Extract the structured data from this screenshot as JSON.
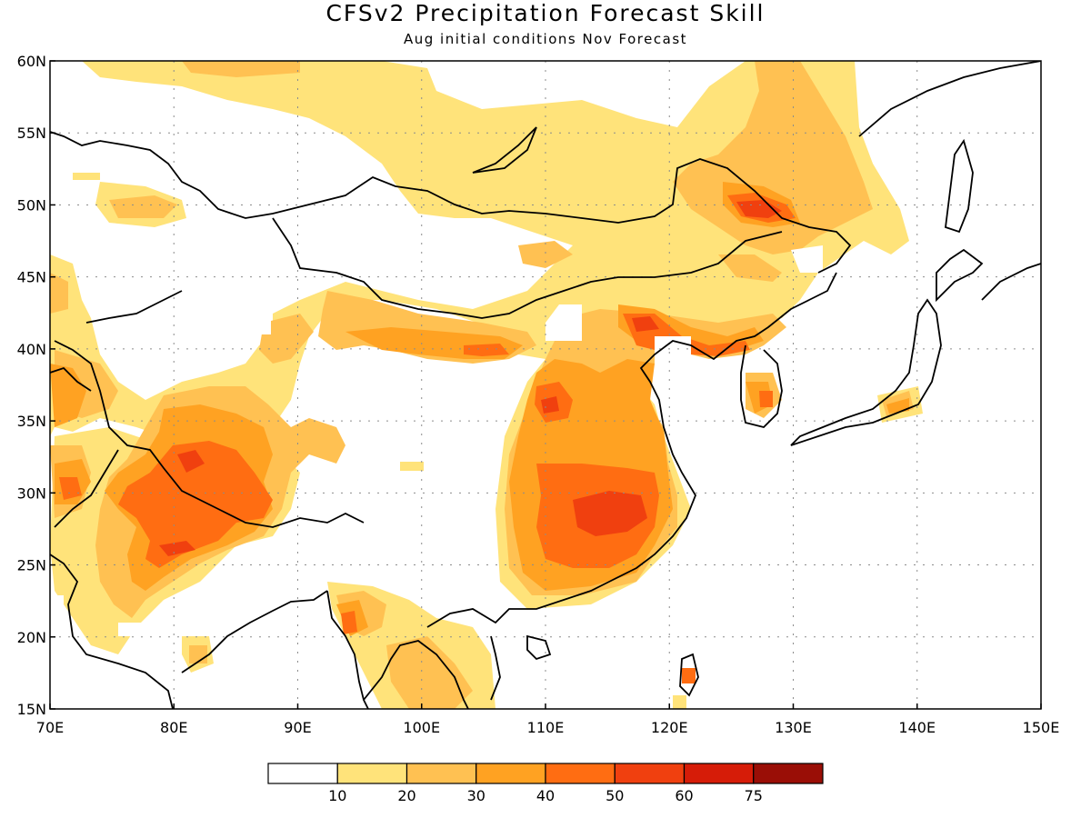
{
  "title": "CFSv2 Precipitation Forecast Skill",
  "subtitle": "Aug initial conditions  Nov Forecast",
  "map": {
    "lon_range": [
      70,
      150
    ],
    "lat_range": [
      15,
      60
    ],
    "lon_ticks": [
      "70E",
      "80E",
      "90E",
      "100E",
      "110E",
      "120E",
      "130E",
      "140E",
      "150E"
    ],
    "lat_ticks": [
      "15N",
      "20N",
      "25N",
      "30N",
      "35N",
      "40N",
      "45N",
      "50N",
      "55N",
      "60N"
    ],
    "grid": "dotted"
  },
  "colorbar": {
    "levels": [
      "10",
      "20",
      "30",
      "40",
      "50",
      "60",
      "75"
    ],
    "colors": [
      "#ffffff",
      "#ffe37a",
      "#ffc152",
      "#ffa222",
      "#ff6d12",
      "#f0400f",
      "#d61c08",
      "#9a0e06"
    ]
  }
}
